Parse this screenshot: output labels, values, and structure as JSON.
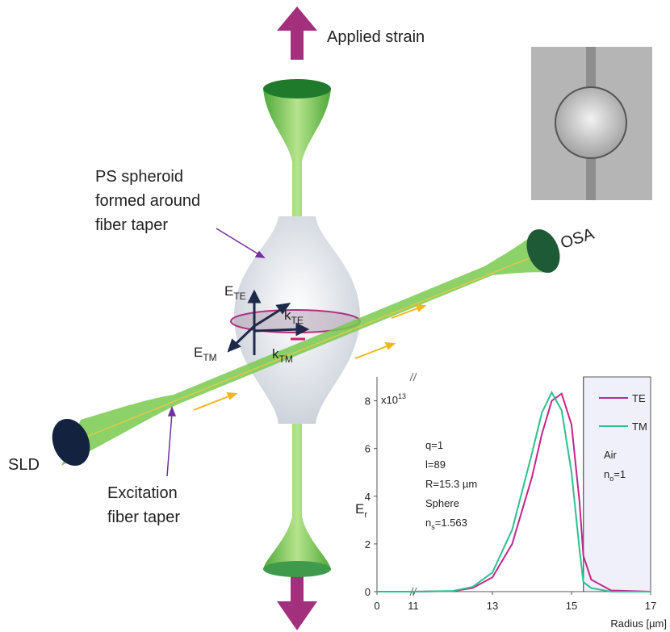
{
  "diagram": {
    "applied_strain": "Applied strain",
    "spheroid_label": [
      "PS spheroid",
      "formed around",
      "fiber taper"
    ],
    "osa": "OSA",
    "sld": "SLD",
    "excitation_label": [
      "Excitation",
      "fiber taper"
    ],
    "field_labels": [
      {
        "main": "E",
        "sub": "TE"
      },
      {
        "main": "k",
        "sub": "TE"
      },
      {
        "main": "E",
        "sub": "TM"
      },
      {
        "main": "k",
        "sub": "TM"
      }
    ]
  },
  "chart_data": {
    "type": "line",
    "x": [
      0,
      11,
      12,
      12.5,
      13,
      13.5,
      14,
      14.25,
      14.5,
      14.75,
      15,
      15.2,
      15.3,
      15.5,
      16,
      17
    ],
    "series": [
      {
        "name": "TE",
        "color": "#c0268c",
        "values": [
          0,
          0,
          0.02,
          0.15,
          0.6,
          2.0,
          4.8,
          6.6,
          8.0,
          8.3,
          7.0,
          3.8,
          1.5,
          0.5,
          0.05,
          0
        ]
      },
      {
        "name": "TM",
        "color": "#2fbf8f",
        "values": [
          0,
          0,
          0.03,
          0.2,
          0.8,
          2.6,
          5.8,
          7.5,
          8.35,
          7.6,
          5.0,
          1.8,
          0.4,
          0.15,
          0,
          0
        ]
      }
    ],
    "xlim": [
      0,
      17
    ],
    "x_break": [
      0,
      11
    ],
    "xticks": [
      0,
      11,
      13,
      15,
      17
    ],
    "ylim": [
      0,
      9
    ],
    "yticks": [
      0,
      2,
      4,
      6,
      8
    ],
    "x_label": "Radius [µm]",
    "y_label": {
      "main": "E",
      "sub": "r"
    },
    "scale_label": {
      "main": "x10",
      "sup": "13"
    },
    "interface_x": 15.3,
    "annotations": [
      "q=1",
      "l=89",
      "R=15.3 µm",
      "Sphere",
      {
        "main": "n",
        "sub": "s",
        "rest": "=1.563"
      }
    ],
    "air_labels": [
      "Air",
      {
        "main": "n",
        "sub": "o",
        "rest": "=1"
      }
    ]
  }
}
